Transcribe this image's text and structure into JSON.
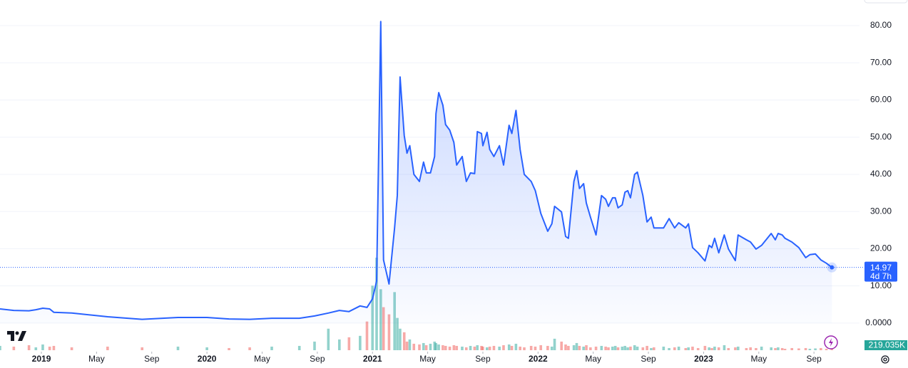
{
  "chart_data": {
    "type": "line",
    "xlim": [
      -3,
      59.3
    ],
    "ylim": [
      -7.3,
      86.9
    ],
    "grid": true,
    "xticks": [
      {
        "value": 0,
        "label": "2019"
      },
      {
        "value": 4,
        "label": "May"
      },
      {
        "value": 8,
        "label": "Sep"
      },
      {
        "value": 12,
        "label": "2020"
      },
      {
        "value": 16,
        "label": "May"
      },
      {
        "value": 20,
        "label": "Sep"
      },
      {
        "value": 24,
        "label": "2021"
      },
      {
        "value": 28,
        "label": "May"
      },
      {
        "value": 32,
        "label": "Sep"
      },
      {
        "value": 36,
        "label": "2022"
      },
      {
        "value": 40,
        "label": "May"
      },
      {
        "value": 44,
        "label": "Sep"
      },
      {
        "value": 48,
        "label": "2023"
      },
      {
        "value": 52,
        "label": "May"
      },
      {
        "value": 56,
        "label": "Sep"
      }
    ],
    "yticks": [
      {
        "value": 0,
        "label": "0.0000"
      },
      {
        "value": 10,
        "label": "10.00"
      },
      {
        "value": 20,
        "label": "20.00"
      },
      {
        "value": 30,
        "label": "30.00"
      },
      {
        "value": 40,
        "label": "40.00"
      },
      {
        "value": 50,
        "label": "50.00"
      },
      {
        "value": 60,
        "label": "60.00"
      },
      {
        "value": 70,
        "label": "70.00"
      },
      {
        "value": 80,
        "label": "80.00"
      }
    ],
    "x": [
      -3.0,
      -2.0,
      -0.9,
      -0.4,
      0.1,
      0.6,
      0.9,
      2.2,
      4.8,
      7.3,
      9.9,
      12.0,
      13.6,
      15.1,
      16.7,
      18.7,
      19.8,
      20.8,
      21.6,
      22.3,
      23.1,
      23.6,
      24.0,
      24.3,
      24.6,
      24.8,
      25.2,
      25.6,
      25.8,
      26.0,
      26.3,
      26.5,
      26.7,
      27.0,
      27.4,
      27.7,
      27.9,
      28.2,
      28.5,
      28.6,
      28.8,
      29.1,
      29.3,
      29.6,
      29.9,
      30.1,
      30.5,
      30.8,
      31.1,
      31.4,
      31.6,
      31.9,
      32.0,
      32.3,
      32.5,
      32.8,
      33.2,
      33.5,
      33.9,
      34.1,
      34.4,
      34.7,
      35.0,
      35.5,
      35.8,
      36.2,
      36.7,
      37.0,
      37.2,
      37.7,
      38.0,
      38.2,
      38.6,
      38.8,
      39.0,
      39.3,
      39.5,
      39.8,
      40.2,
      40.6,
      40.9,
      41.1,
      41.4,
      41.6,
      41.8,
      42.1,
      42.3,
      42.5,
      42.7,
      43.0,
      43.2,
      43.6,
      43.9,
      44.2,
      44.4,
      45.1,
      45.5,
      45.9,
      46.2,
      46.7,
      46.9,
      47.2,
      47.6,
      48.1,
      48.4,
      48.6,
      48.8,
      49.1,
      49.5,
      49.8,
      50.3,
      50.5,
      51.1,
      51.4,
      51.8,
      52.2,
      52.9,
      53.2,
      53.4,
      53.7,
      53.9,
      54.4,
      54.9,
      55.4,
      55.7,
      56.1,
      56.5,
      56.9,
      57.3
    ],
    "series": [
      {
        "color": "#2962ff",
        "values": [
          3.8,
          3.4,
          3.3,
          3.6,
          4.0,
          3.8,
          2.9,
          2.7,
          1.7,
          1.0,
          1.5,
          1.5,
          1.1,
          1.0,
          1.3,
          1.3,
          1.9,
          2.7,
          3.4,
          3.1,
          4.6,
          4.2,
          6.5,
          11.3,
          81.1,
          17.0,
          10.5,
          25.6,
          34.3,
          66.2,
          50.5,
          45.7,
          47.7,
          40.0,
          38.1,
          43.3,
          40.4,
          40.4,
          44.8,
          56.3,
          62.0,
          58.6,
          53.4,
          51.9,
          48.6,
          42.5,
          44.8,
          38.1,
          40.4,
          40.2,
          51.5,
          51.0,
          47.7,
          51.3,
          46.7,
          44.8,
          47.7,
          42.5,
          53.2,
          51.0,
          57.2,
          46.7,
          40.0,
          38.1,
          35.6,
          29.5,
          24.7,
          26.7,
          31.4,
          29.9,
          23.3,
          22.8,
          38.1,
          41.0,
          36.2,
          37.5,
          32.3,
          28.5,
          23.7,
          34.3,
          33.3,
          31.4,
          33.7,
          33.7,
          31.0,
          31.8,
          35.2,
          35.6,
          33.7,
          40.0,
          40.6,
          34.3,
          27.2,
          28.5,
          25.6,
          25.6,
          28.1,
          25.6,
          27.0,
          25.6,
          26.7,
          20.3,
          18.9,
          16.7,
          20.9,
          20.3,
          22.8,
          18.9,
          23.7,
          19.9,
          16.8,
          23.7,
          22.4,
          21.8,
          19.9,
          20.9,
          24.1,
          22.4,
          24.1,
          23.7,
          22.8,
          21.8,
          20.3,
          17.6,
          18.4,
          18.6,
          17.0,
          16.1,
          14.97
        ]
      }
    ],
    "countdown": "4d 7h",
    "volume": {
      "up_color": "rgba(38,166,154,0.5)",
      "down_color": "rgba(239,83,80,0.5)",
      "label_color": "#26a69a",
      "last_label": "219.035K",
      "values": [
        600000,
        500000,
        700000,
        400000,
        800000,
        500000,
        600000,
        400000,
        500000,
        400000,
        500000,
        400000,
        300000,
        400000,
        500000,
        600000,
        1200000,
        3000000,
        1500000,
        1800000,
        2000000,
        4000000,
        9000000,
        12900000,
        8500000,
        6000000,
        5000000,
        8100000,
        4500000,
        3000000,
        2500000,
        1200000,
        1500000,
        900000,
        800000,
        1000000,
        700000,
        900000,
        1200000,
        1000000,
        800000,
        700000,
        600000,
        500000,
        700000,
        600000,
        500000,
        400000,
        600000,
        500000,
        700000,
        600000,
        500000,
        400000,
        500000,
        600000,
        500000,
        700000,
        800000,
        600000,
        900000,
        500000,
        400000,
        600000,
        500000,
        700000,
        600000,
        500000,
        1600000,
        1200000,
        800000,
        600000,
        700000,
        1000000,
        600000,
        500000,
        700000,
        400000,
        500000,
        600000,
        500000,
        400000,
        500000,
        600000,
        400000,
        500000,
        600000,
        400000,
        500000,
        700000,
        500000,
        400000,
        600000,
        300000,
        400000,
        500000,
        300000,
        400000,
        500000,
        300000,
        400000,
        500000,
        300000,
        600000,
        400000,
        300000,
        500000,
        400000,
        700000,
        300000,
        400000,
        500000,
        300000,
        400000,
        300000,
        500000,
        400000,
        300000,
        400000,
        300000,
        200000,
        300000,
        250000,
        300000,
        200000,
        250000,
        300000,
        200000,
        219035
      ]
    }
  }
}
